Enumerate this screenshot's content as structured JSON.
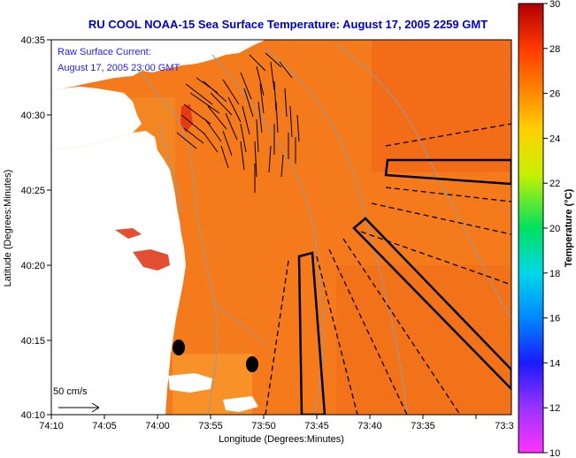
{
  "title": "RU COOL  NOAA-15  Sea Surface Temperature:  August 17, 2005 2259 GMT",
  "annotation": {
    "line1": "Raw Surface Current:",
    "line2": "August 17, 2005 23:00 GMT"
  },
  "scale": {
    "label": "50 cm/s"
  },
  "x_axis": {
    "label": "Longitude (Degrees:Minutes)",
    "ticks": [
      "74:10",
      "74:05",
      "74:00",
      "73:55",
      "73:50",
      "73:45",
      "73:40",
      "73:35",
      "73:3"
    ]
  },
  "y_axis": {
    "label": "Latitude (Degrees:Minutes)",
    "ticks": [
      "40:35",
      "40:30",
      "40:25",
      "40:20",
      "40:15",
      "40:10"
    ]
  },
  "colorbar": {
    "label": "Temperature (°C)",
    "ticks": [
      "30",
      "28",
      "26",
      "24",
      "22",
      "20",
      "18",
      "16",
      "14",
      "12",
      "10"
    ],
    "min": 10,
    "max": 30
  },
  "colors": {
    "title": "#0000cc",
    "water": "#f47a1c",
    "land": "#ffffff",
    "contour": "#9a9a9a"
  }
}
